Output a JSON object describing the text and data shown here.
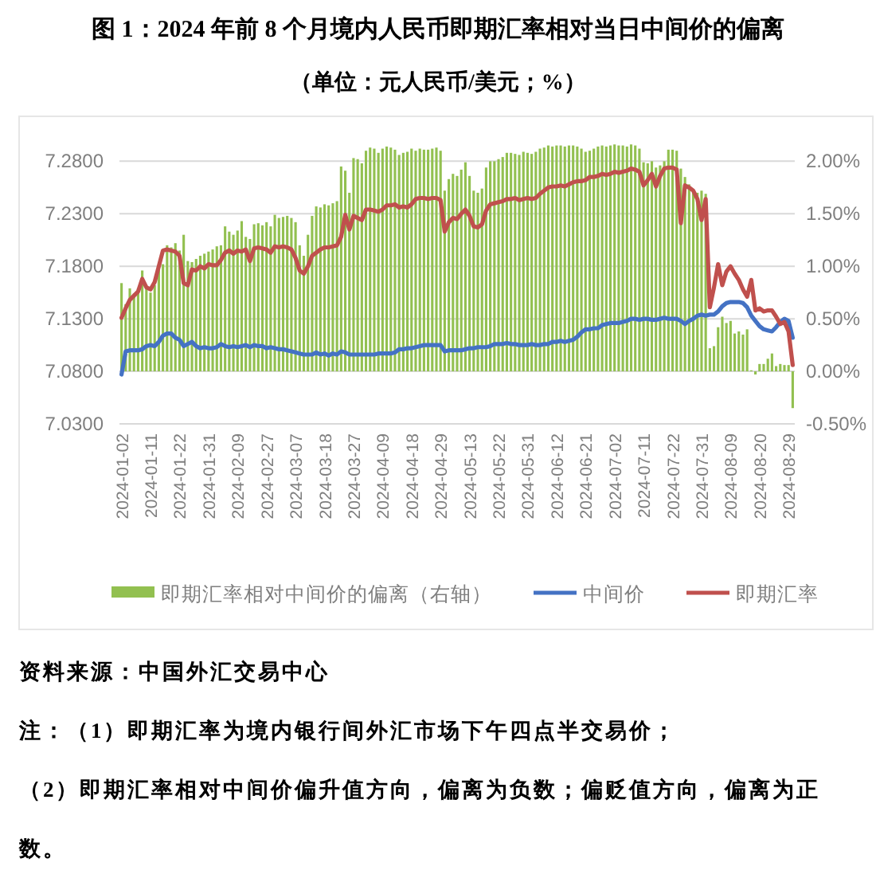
{
  "chart_data": {
    "type": "line",
    "title": "图 1：2024 年前 8 个月境内人民币即期汇率相对当日中间价的偏离",
    "subtitle": "（单位：元人民币/美元；%）",
    "categories": [
      "2024-01-02",
      null,
      null,
      null,
      null,
      null,
      null,
      "2024-01-11",
      null,
      null,
      null,
      null,
      null,
      null,
      "2024-01-22",
      null,
      null,
      null,
      null,
      null,
      null,
      "2024-01-31",
      null,
      null,
      null,
      null,
      null,
      null,
      "2024-02-09",
      null,
      null,
      null,
      null,
      null,
      null,
      "2024-02-27",
      null,
      null,
      null,
      null,
      null,
      null,
      "2024-03-07",
      null,
      null,
      null,
      null,
      null,
      null,
      "2024-03-18",
      null,
      null,
      null,
      null,
      null,
      null,
      "2024-03-27",
      null,
      null,
      null,
      null,
      null,
      null,
      "2024-04-09",
      null,
      null,
      null,
      null,
      null,
      null,
      "2024-04-18",
      null,
      null,
      null,
      null,
      null,
      null,
      "2024-04-29",
      null,
      null,
      null,
      null,
      null,
      null,
      "2024-05-13",
      null,
      null,
      null,
      null,
      null,
      null,
      "2024-05-22",
      null,
      null,
      null,
      null,
      null,
      null,
      "2024-05-31",
      null,
      null,
      null,
      null,
      null,
      null,
      "2024-06-12",
      null,
      null,
      null,
      null,
      null,
      null,
      "2024-06-21",
      null,
      null,
      null,
      null,
      null,
      null,
      "2024-07-02",
      null,
      null,
      null,
      null,
      null,
      null,
      "2024-07-11",
      null,
      null,
      null,
      null,
      null,
      null,
      "2024-07-22",
      null,
      null,
      null,
      null,
      null,
      null,
      "2024-07-31",
      null,
      null,
      null,
      null,
      null,
      null,
      "2024-08-09",
      null,
      null,
      null,
      null,
      null,
      null,
      "2024-08-20",
      null,
      null,
      null,
      null,
      null,
      null,
      "2024-08-29",
      null
    ],
    "series": [
      {
        "name": "即期汇率相对中间价的偏离（右轴）",
        "type": "bar",
        "axis": "y2",
        "color": "#92c050",
        "values": [
          0.84,
          0.64,
          0.79,
          0.74,
          0.79,
          0.96,
          0.8,
          0.75,
          0.82,
          0.99,
          1.02,
          1.2,
          1.18,
          1.22,
          1.15,
          1.3,
          1.05,
          1.04,
          1.07,
          1.1,
          1.12,
          1.14,
          1.16,
          1.19,
          1.2,
          1.38,
          1.33,
          1.3,
          1.34,
          1.43,
          1.28,
          1.26,
          1.4,
          1.41,
          1.39,
          1.42,
          1.38,
          1.49,
          1.46,
          1.47,
          1.48,
          1.46,
          1.42,
          1.2,
          1.1,
          1.3,
          1.48,
          1.57,
          1.56,
          1.59,
          1.58,
          1.6,
          1.62,
          1.95,
          1.91,
          1.7,
          2.03,
          2.02,
          1.98,
          2.1,
          2.13,
          2.12,
          2.08,
          2.12,
          2.14,
          2.13,
          2.11,
          2.06,
          2.08,
          2.09,
          2.12,
          2.1,
          2.12,
          2.11,
          2.11,
          2.12,
          2.13,
          2.1,
          1.72,
          1.83,
          1.88,
          1.86,
          1.92,
          1.99,
          1.86,
          1.72,
          1.7,
          1.74,
          1.94,
          2.0,
          2.0,
          2.02,
          2.04,
          2.08,
          2.08,
          2.07,
          2.06,
          2.09,
          2.08,
          2.07,
          2.09,
          2.12,
          2.13,
          2.15,
          2.14,
          2.15,
          2.15,
          2.14,
          2.15,
          2.15,
          2.14,
          2.12,
          2.09,
          2.1,
          2.12,
          2.14,
          2.15,
          2.14,
          2.15,
          2.16,
          2.15,
          2.15,
          2.14,
          2.16,
          2.15,
          2.12,
          1.99,
          1.98,
          2.0,
          1.94,
          1.96,
          2.0,
          2.11,
          2.11,
          2.1,
          1.93,
          1.85,
          1.78,
          1.72,
          1.7,
          1.72,
          1.69,
          0.22,
          0.24,
          0.42,
          0.52,
          0.46,
          0.48,
          0.36,
          0.38,
          0.35,
          0.4,
          0.01,
          -0.03,
          0.07,
          0.07,
          0.12,
          0.17,
          0.05,
          0.07,
          0.06,
          0.06,
          -0.35
        ]
      },
      {
        "name": "中间价",
        "color": "#4472c4",
        "values": [
          7.077,
          7.099,
          7.1,
          7.1,
          7.1,
          7.101,
          7.104,
          7.105,
          7.104,
          7.108,
          7.114,
          7.116,
          7.116,
          7.112,
          7.11,
          7.104,
          7.106,
          7.108,
          7.104,
          7.102,
          7.103,
          7.102,
          7.102,
          7.103,
          7.106,
          7.104,
          7.103,
          7.104,
          7.103,
          7.104,
          7.105,
          7.103,
          7.105,
          7.104,
          7.104,
          7.102,
          7.103,
          7.102,
          7.101,
          7.101,
          7.1,
          7.099,
          7.098,
          7.097,
          7.096,
          7.096,
          7.096,
          7.098,
          7.096,
          7.097,
          7.095,
          7.097,
          7.096,
          7.099,
          7.098,
          7.096,
          7.096,
          7.096,
          7.096,
          7.096,
          7.096,
          7.096,
          7.097,
          7.097,
          7.097,
          7.097,
          7.098,
          7.101,
          7.101,
          7.102,
          7.102,
          7.103,
          7.104,
          7.105,
          7.105,
          7.105,
          7.105,
          7.105,
          7.099,
          7.1,
          7.1,
          7.1,
          7.1,
          7.101,
          7.102,
          7.102,
          7.103,
          7.103,
          7.103,
          7.104,
          7.106,
          7.106,
          7.106,
          7.107,
          7.106,
          7.106,
          7.105,
          7.105,
          7.105,
          7.106,
          7.105,
          7.105,
          7.106,
          7.106,
          7.108,
          7.108,
          7.109,
          7.108,
          7.109,
          7.11,
          7.113,
          7.117,
          7.12,
          7.12,
          7.121,
          7.121,
          7.124,
          7.125,
          7.126,
          7.126,
          7.126,
          7.127,
          7.128,
          7.13,
          7.13,
          7.129,
          7.13,
          7.13,
          7.129,
          7.129,
          7.13,
          7.131,
          7.13,
          7.13,
          7.13,
          7.128,
          7.125,
          7.128,
          7.13,
          7.133,
          7.134,
          7.133,
          7.134,
          7.134,
          7.137,
          7.142,
          7.145,
          7.146,
          7.146,
          7.146,
          7.145,
          7.141,
          7.133,
          7.128,
          7.123,
          7.12,
          7.119,
          7.118,
          7.122,
          7.127,
          7.13,
          7.128,
          7.112
        ]
      },
      {
        "name": "即期汇率",
        "color": "#c0504d",
        "values": [
          7.131,
          7.14,
          7.148,
          7.152,
          7.156,
          7.168,
          7.16,
          7.158,
          7.165,
          7.18,
          7.195,
          7.196,
          7.195,
          7.194,
          7.19,
          7.164,
          7.162,
          7.177,
          7.176,
          7.18,
          7.178,
          7.182,
          7.181,
          7.181,
          7.186,
          7.193,
          7.195,
          7.192,
          7.195,
          7.194,
          7.196,
          7.185,
          7.197,
          7.198,
          7.197,
          7.196,
          7.193,
          7.199,
          7.198,
          7.199,
          7.198,
          7.196,
          7.188,
          7.176,
          7.173,
          7.18,
          7.19,
          7.193,
          7.196,
          7.198,
          7.198,
          7.199,
          7.2,
          7.208,
          7.229,
          7.215,
          7.228,
          7.226,
          7.224,
          7.234,
          7.234,
          7.233,
          7.232,
          7.234,
          7.238,
          7.238,
          7.239,
          7.236,
          7.237,
          7.236,
          7.239,
          7.244,
          7.245,
          7.245,
          7.244,
          7.245,
          7.245,
          7.243,
          7.213,
          7.222,
          7.226,
          7.225,
          7.23,
          7.234,
          7.228,
          7.218,
          7.217,
          7.22,
          7.233,
          7.239,
          7.24,
          7.241,
          7.242,
          7.244,
          7.244,
          7.245,
          7.243,
          7.244,
          7.245,
          7.244,
          7.245,
          7.249,
          7.252,
          7.255,
          7.256,
          7.256,
          7.257,
          7.256,
          7.258,
          7.26,
          7.261,
          7.261,
          7.262,
          7.265,
          7.265,
          7.266,
          7.268,
          7.267,
          7.268,
          7.27,
          7.269,
          7.27,
          7.271,
          7.273,
          7.272,
          7.27,
          7.257,
          7.262,
          7.268,
          7.256,
          7.266,
          7.273,
          7.274,
          7.274,
          7.272,
          7.221,
          7.257,
          7.255,
          7.252,
          7.244,
          7.224,
          7.244,
          7.141,
          7.16,
          7.182,
          7.162,
          7.175,
          7.18,
          7.173,
          7.167,
          7.158,
          7.151,
          7.167,
          7.138,
          7.14,
          7.137,
          7.138,
          7.138,
          7.132,
          7.125,
          7.127,
          7.118,
          7.086
        ]
      }
    ],
    "ylim": [
      7.03,
      7.3
    ],
    "yticks": [
      {
        "value": 7.03,
        "label": "7.0300"
      },
      {
        "value": 7.08,
        "label": "7.0800"
      },
      {
        "value": 7.13,
        "label": "7.1300"
      },
      {
        "value": 7.18,
        "label": "7.1800"
      },
      {
        "value": 7.23,
        "label": "7.2300"
      },
      {
        "value": 7.28,
        "label": "7.2800"
      }
    ],
    "y2lim": [
      -0.5,
      2.2
    ],
    "y2ticks": [
      {
        "value": -0.5,
        "label": "-0.50%"
      },
      {
        "value": 0,
        "label": "0.00%"
      },
      {
        "value": 0.5,
        "label": "0.50%"
      },
      {
        "value": 1,
        "label": "1.00%"
      },
      {
        "value": 1.5,
        "label": "1.50%"
      },
      {
        "value": 2,
        "label": "2.00%"
      }
    ],
    "grid": "y",
    "legend": "bottom",
    "annotations": [
      "资料来源：中国外汇交易中心",
      "注：（1）即期汇率为境内银行间外汇市场下午四点半交易价；",
      "（2）即期汇率相对中间价偏升值方向，偏离为负数；偏贬值方向，偏离为正数。"
    ]
  }
}
